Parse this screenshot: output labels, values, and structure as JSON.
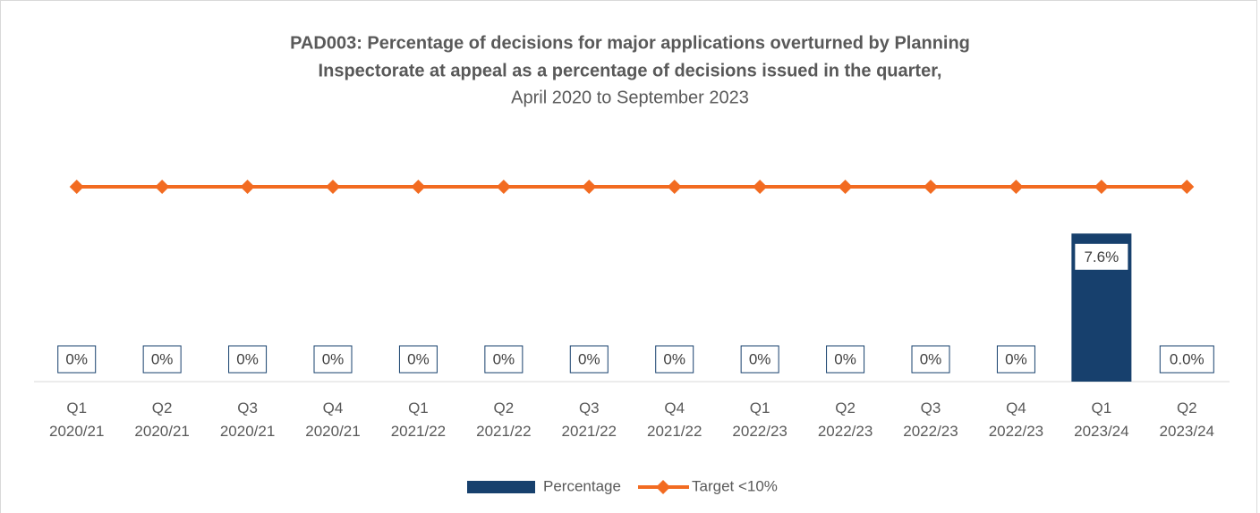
{
  "chart_data": {
    "type": "bar_line",
    "title": [
      "PAD003: Percentage of decisions for major applications overturned by Planning",
      "Inspectorate  at appeal as a percentage of decisions issued in the quarter,"
    ],
    "subtitle": "April 2020 to September 2023",
    "categories": [
      "Q1 2020/21",
      "Q2 2020/21",
      "Q3 2020/21",
      "Q4 2020/21",
      "Q1 2021/22",
      "Q2 2021/22",
      "Q3 2021/22",
      "Q4 2021/22",
      "Q1 2022/23",
      "Q2 2022/23",
      "Q3 2022/23",
      "Q4 2022/23",
      "Q1 2023/24",
      "Q2 2023/24"
    ],
    "series": [
      {
        "name": "Percentage",
        "color": "#17406d",
        "kind": "bar",
        "values": [
          0,
          0,
          0,
          0,
          0,
          0,
          0,
          0,
          0,
          0,
          0,
          0,
          7.6,
          0
        ],
        "value_labels": [
          "0%",
          "0%",
          "0%",
          "0%",
          "0%",
          "0%",
          "0%",
          "0%",
          "0%",
          "0%",
          "0%",
          "0%",
          "7.6%",
          "0.0%"
        ]
      },
      {
        "name": "Target <10%",
        "color": "#f26b21",
        "kind": "line",
        "values": [
          10,
          10,
          10,
          10,
          10,
          10,
          10,
          10,
          10,
          10,
          10,
          10,
          10,
          10
        ]
      }
    ],
    "legend": "bottom"
  }
}
